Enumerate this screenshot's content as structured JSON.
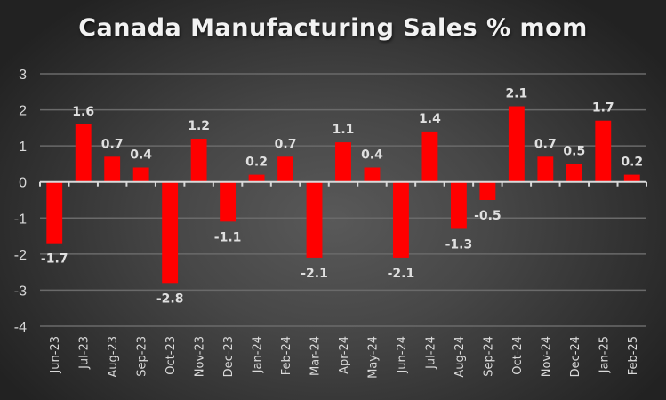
{
  "chart_data": {
    "type": "bar",
    "title": "Canada Manufacturing Sales % mom",
    "xlabel": "",
    "ylabel": "",
    "ylim": [
      -4,
      3
    ],
    "yticks": [
      3,
      2,
      1,
      0,
      -1,
      -2,
      -3,
      -4
    ],
    "grid": true,
    "legend": "none",
    "bar_color": "#FF0000",
    "categories": [
      "Jun-23",
      "Jul-23",
      "Aug-23",
      "Sep-23",
      "Oct-23",
      "Nov-23",
      "Dec-23",
      "Jan-24",
      "Feb-24",
      "Mar-24",
      "Apr-24",
      "May-24",
      "Jun-24",
      "Jul-24",
      "Aug-24",
      "Sep-24",
      "Oct-24",
      "Nov-24",
      "Dec-24",
      "Jan-25",
      "Feb-25"
    ],
    "values": [
      -1.7,
      1.6,
      0.7,
      0.4,
      -2.8,
      1.2,
      -1.1,
      0.2,
      0.7,
      -2.1,
      1.1,
      0.4,
      -2.1,
      1.4,
      -1.3,
      -0.5,
      2.1,
      0.7,
      0.5,
      1.7,
      0.2
    ],
    "data_labels": [
      "-1.7",
      "1.6",
      "0.7",
      "0.4",
      "-2.8",
      "1.2",
      "-1.1",
      "0.2",
      "0.7",
      "-2.1",
      "1.1",
      "0.4",
      "-2.1",
      "1.4",
      "-1.3",
      "-0.5",
      "2.1",
      "0.7",
      "0.5",
      "1.7",
      "0.2"
    ]
  }
}
